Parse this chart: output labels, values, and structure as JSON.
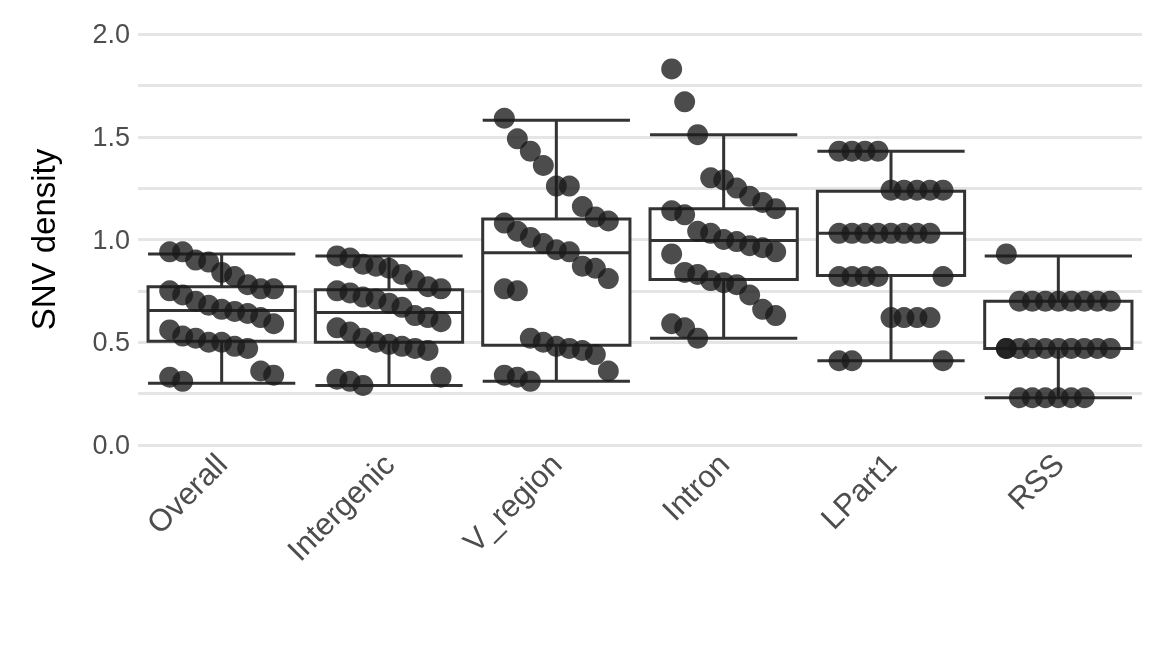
{
  "chart_data": {
    "type": "box",
    "ylabel": "SNV density",
    "categories": [
      "Overall",
      "Intergenic",
      "V_region",
      "Intron",
      "LPart1",
      "RSS"
    ],
    "ylim": [
      0,
      2
    ],
    "yticks": [
      {
        "value": 0,
        "label": "0.0"
      },
      {
        "value": 0.25,
        "label": null
      },
      {
        "value": 0.5,
        "label": "0.5"
      },
      {
        "value": 0.75,
        "label": null
      },
      {
        "value": 1,
        "label": "1.0"
      },
      {
        "value": 1.25,
        "label": null
      },
      {
        "value": 1.5,
        "label": "1.5"
      },
      {
        "value": 1.75,
        "label": null
      },
      {
        "value": 2,
        "label": "2.0"
      }
    ],
    "grid": "y",
    "marker": "circle",
    "series": [
      {
        "type": "box",
        "color": "#333333",
        "boxes": [
          {
            "low": 0.3,
            "q1": 0.505,
            "median": 0.655,
            "q3": 0.77,
            "high": 0.93
          },
          {
            "low": 0.29,
            "q1": 0.5,
            "median": 0.645,
            "q3": 0.755,
            "high": 0.92
          },
          {
            "low": 0.31,
            "q1": 0.485,
            "median": 0.935,
            "q3": 1.1,
            "high": 1.58
          },
          {
            "low": 0.52,
            "q1": 0.805,
            "median": 0.995,
            "q3": 1.15,
            "high": 1.51
          },
          {
            "low": 0.41,
            "q1": 0.825,
            "median": 1.03,
            "q3": 1.235,
            "high": 1.43
          },
          {
            "low": 0.23,
            "q1": 0.47,
            "median": 0.47,
            "q3": 0.7,
            "high": 0.92
          }
        ]
      },
      {
        "type": "scatter",
        "color": "#1a1a1a",
        "x": [
          "Overall",
          "Overall",
          "Overall",
          "Overall",
          "Overall",
          "Overall",
          "Overall",
          "Overall",
          "Overall",
          "Overall",
          "Overall",
          "Overall",
          "Overall",
          "Overall",
          "Overall",
          "Overall",
          "Overall",
          "Overall",
          "Overall",
          "Overall",
          "Overall",
          "Overall",
          "Overall",
          "Overall",
          "Overall",
          "Overall",
          "Overall",
          "Overall",
          "Overall",
          "Intergenic",
          "Intergenic",
          "Intergenic",
          "Intergenic",
          "Intergenic",
          "Intergenic",
          "Intergenic",
          "Intergenic",
          "Intergenic",
          "Intergenic",
          "Intergenic",
          "Intergenic",
          "Intergenic",
          "Intergenic",
          "Intergenic",
          "Intergenic",
          "Intergenic",
          "Intergenic",
          "Intergenic",
          "Intergenic",
          "Intergenic",
          "Intergenic",
          "Intergenic",
          "Intergenic",
          "Intergenic",
          "Intergenic",
          "Intergenic",
          "Intergenic",
          "Intergenic",
          "Intergenic",
          "V_region",
          "V_region",
          "V_region",
          "V_region",
          "V_region",
          "V_region",
          "V_region",
          "V_region",
          "V_region",
          "V_region",
          "V_region",
          "V_region",
          "V_region",
          "V_region",
          "V_region",
          "V_region",
          "V_region",
          "V_region",
          "V_region",
          "V_region",
          "V_region",
          "V_region",
          "V_region",
          "V_region",
          "V_region",
          "V_region",
          "V_region",
          "V_region",
          "V_region",
          "V_region",
          "Intron",
          "Intron",
          "Intron",
          "Intron",
          "Intron",
          "Intron",
          "Intron",
          "Intron",
          "Intron",
          "Intron",
          "Intron",
          "Intron",
          "Intron",
          "Intron",
          "Intron",
          "Intron",
          "Intron",
          "Intron",
          "Intron",
          "Intron",
          "Intron",
          "Intron",
          "Intron",
          "Intron",
          "Intron",
          "Intron",
          "Intron",
          "Intron",
          "Intron",
          "Intron",
          "LPart1",
          "LPart1",
          "LPart1",
          "LPart1",
          "LPart1",
          "LPart1",
          "LPart1",
          "LPart1",
          "LPart1",
          "LPart1",
          "LPart1",
          "LPart1",
          "LPart1",
          "LPart1",
          "LPart1",
          "LPart1",
          "LPart1",
          "LPart1",
          "LPart1",
          "LPart1",
          "LPart1",
          "LPart1",
          "LPart1",
          "LPart1",
          "LPart1",
          "LPart1",
          "LPart1",
          "LPart1",
          "LPart1",
          "RSS",
          "RSS",
          "RSS",
          "RSS",
          "RSS",
          "RSS",
          "RSS",
          "RSS",
          "RSS",
          "RSS",
          "RSS",
          "RSS",
          "RSS",
          "RSS",
          "RSS",
          "RSS",
          "RSS",
          "RSS",
          "RSS",
          "RSS",
          "RSS",
          "RSS",
          "RSS",
          "RSS",
          "RSS"
        ],
        "values": [
          0.94,
          0.94,
          0.9,
          0.89,
          0.84,
          0.82,
          0.78,
          0.76,
          0.76,
          0.75,
          0.73,
          0.7,
          0.68,
          0.66,
          0.65,
          0.64,
          0.62,
          0.59,
          0.56,
          0.53,
          0.52,
          0.5,
          0.5,
          0.48,
          0.47,
          0.36,
          0.34,
          0.33,
          0.31,
          0.92,
          0.91,
          0.88,
          0.87,
          0.86,
          0.83,
          0.8,
          0.77,
          0.76,
          0.75,
          0.74,
          0.72,
          0.71,
          0.69,
          0.67,
          0.63,
          0.62,
          0.6,
          0.57,
          0.55,
          0.52,
          0.5,
          0.49,
          0.48,
          0.47,
          0.46,
          0.33,
          0.32,
          0.31,
          0.29,
          1.59,
          1.49,
          1.43,
          1.36,
          1.26,
          1.26,
          1.16,
          1.11,
          1.09,
          1.08,
          1.04,
          1.01,
          0.98,
          0.95,
          0.94,
          0.87,
          0.86,
          0.81,
          0.76,
          0.75,
          0.52,
          0.5,
          0.48,
          0.47,
          0.46,
          0.44,
          0.36,
          0.34,
          0.33,
          0.31,
          1.83,
          1.67,
          1.51,
          1.3,
          1.29,
          1.25,
          1.21,
          1.18,
          1.15,
          1.14,
          1.12,
          1.04,
          1.03,
          1.0,
          0.99,
          0.97,
          0.96,
          0.94,
          0.93,
          0.84,
          0.83,
          0.8,
          0.79,
          0.78,
          0.73,
          0.66,
          0.63,
          0.59,
          0.57,
          0.52,
          1.43,
          1.43,
          1.43,
          1.43,
          1.24,
          1.24,
          1.24,
          1.24,
          1.24,
          1.03,
          1.03,
          1.03,
          1.03,
          1.03,
          1.03,
          1.03,
          1.03,
          0.82,
          0.82,
          0.82,
          0.82,
          0.82,
          0.62,
          0.62,
          0.62,
          0.62,
          0.41,
          0.41,
          0.41,
          0.93,
          0.7,
          0.7,
          0.7,
          0.7,
          0.7,
          0.7,
          0.7,
          0.7,
          0.47,
          0.47,
          0.47,
          0.47,
          0.47,
          0.47,
          0.47,
          0.47,
          0.47,
          0.47,
          0.23,
          0.23,
          0.23,
          0.23,
          0.23,
          0.23
        ]
      }
    ]
  }
}
